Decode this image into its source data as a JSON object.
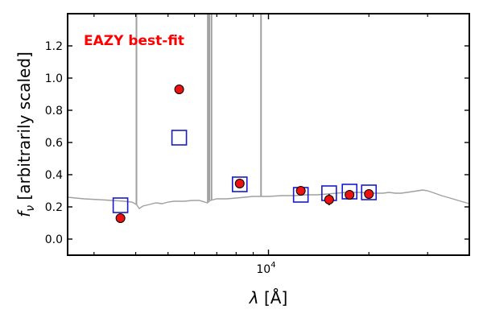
{
  "chart_data": {
    "type": "scatter",
    "annotation": "EAZY best-fit",
    "annotation_color": "#ff0000",
    "xlabel_symbol": "λ",
    "xlabel_unit": "[Å]",
    "ylabel_symbol": "f",
    "ylabel_subscript": "ν",
    "ylabel_rest": "[arbitrarily scaled]",
    "x_scale": "log",
    "xlim": [
      2500,
      40000
    ],
    "ylim": [
      -0.1,
      1.4
    ],
    "yticks": [
      0.0,
      0.2,
      0.4,
      0.6,
      0.8,
      1.0,
      1.2
    ],
    "ytick_labels": [
      "0.0",
      "0.2",
      "0.4",
      "0.6",
      "0.8",
      "1.0",
      "1.2"
    ],
    "xtick_label_base": "10",
    "xtick_label_exp": "4",
    "xtick_label_value": 10000,
    "xtick_minor": [
      3000,
      4000,
      5000,
      6000,
      7000,
      8000,
      9000,
      20000,
      30000,
      40000
    ],
    "grid": false,
    "colors": {
      "observed_fill": "#ee1111",
      "observed_edge": "#000000",
      "model_edge": "#1a1acc",
      "spectrum": "#a0a0a0"
    },
    "series": [
      {
        "marker": "circle",
        "points": [
          {
            "x": 3600,
            "y": 0.13,
            "err": 0.01
          },
          {
            "x": 5400,
            "y": 0.93,
            "err": 0.03
          },
          {
            "x": 8200,
            "y": 0.345,
            "err": 0.015
          },
          {
            "x": 12500,
            "y": 0.3,
            "err": 0.01
          },
          {
            "x": 15200,
            "y": 0.245,
            "err": 0.035
          },
          {
            "x": 17500,
            "y": 0.275,
            "err": 0.02
          },
          {
            "x": 20000,
            "y": 0.28,
            "err": 0.01
          }
        ]
      },
      {
        "marker": "open-square",
        "points": [
          {
            "x": 3600,
            "y": 0.21
          },
          {
            "x": 5400,
            "y": 0.63
          },
          {
            "x": 8200,
            "y": 0.34
          },
          {
            "x": 12500,
            "y": 0.275
          },
          {
            "x": 15200,
            "y": 0.285
          },
          {
            "x": 17500,
            "y": 0.295
          },
          {
            "x": 20000,
            "y": 0.29
          }
        ]
      },
      {
        "marker": "line",
        "points": [
          [
            2500,
            0.26
          ],
          [
            2800,
            0.25
          ],
          [
            3100,
            0.245
          ],
          [
            3400,
            0.24
          ],
          [
            3700,
            0.235
          ],
          [
            3900,
            0.23
          ],
          [
            4020,
            0.215
          ],
          [
            4100,
            0.19
          ],
          [
            4200,
            0.205
          ],
          [
            4400,
            0.215
          ],
          [
            4600,
            0.225
          ],
          [
            4800,
            0.22
          ],
          [
            5000,
            0.23
          ],
          [
            5200,
            0.235
          ],
          [
            5400,
            0.235
          ],
          [
            5600,
            0.235
          ],
          [
            5900,
            0.24
          ],
          [
            6200,
            0.24
          ],
          [
            6560,
            0.225
          ],
          [
            6700,
            0.24
          ],
          [
            7000,
            0.25
          ],
          [
            7500,
            0.25
          ],
          [
            8000,
            0.255
          ],
          [
            8500,
            0.26
          ],
          [
            9000,
            0.265
          ],
          [
            10000,
            0.265
          ],
          [
            11000,
            0.27
          ],
          [
            12000,
            0.27
          ],
          [
            13000,
            0.275
          ],
          [
            14000,
            0.275
          ],
          [
            15000,
            0.28
          ],
          [
            16000,
            0.285
          ],
          [
            17000,
            0.29
          ],
          [
            18000,
            0.29
          ],
          [
            19000,
            0.29
          ],
          [
            20000,
            0.285
          ],
          [
            21000,
            0.285
          ],
          [
            22000,
            0.285
          ],
          [
            23000,
            0.29
          ],
          [
            24000,
            0.285
          ],
          [
            25000,
            0.285
          ],
          [
            26000,
            0.29
          ],
          [
            27000,
            0.295
          ],
          [
            28000,
            0.3
          ],
          [
            29000,
            0.305
          ],
          [
            30000,
            0.3
          ],
          [
            31000,
            0.29
          ],
          [
            32000,
            0.28
          ],
          [
            33000,
            0.27
          ],
          [
            35000,
            0.255
          ],
          [
            37000,
            0.24
          ],
          [
            40000,
            0.22
          ]
        ]
      },
      {
        "marker": "emission-line",
        "points": [
          {
            "x": 4020,
            "y": 1.4
          },
          {
            "x": 6580,
            "y": 1.4
          },
          {
            "x": 6650,
            "y": 1.4
          },
          {
            "x": 6750,
            "y": 1.4
          },
          {
            "x": 9500,
            "y": 1.4
          }
        ]
      }
    ]
  }
}
